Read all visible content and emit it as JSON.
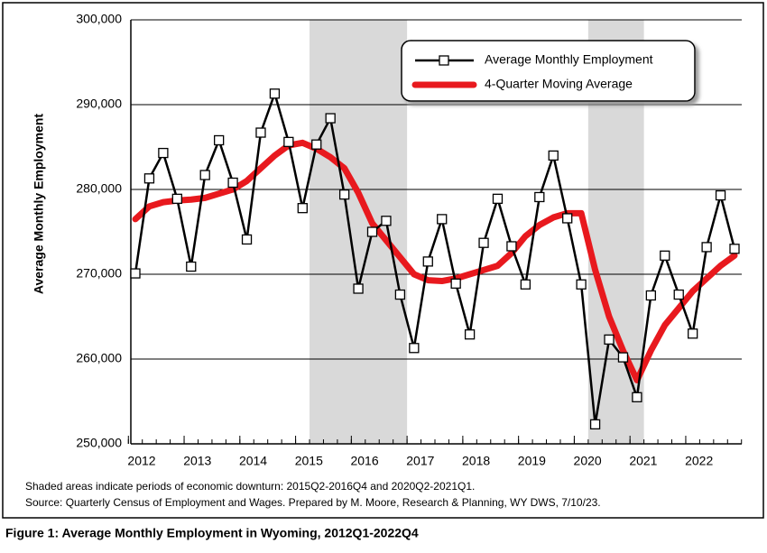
{
  "chart_data": {
    "type": "line",
    "ylabel": "Average Monthly Employment",
    "caption": "Figure 1: Average Monthly Employment in Wyoming, 2012Q1-2022Q4",
    "notes": [
      "Shaded areas indicate periods of economic downturn: 2015Q2-2016Q4 and 2020Q2-2021Q1.",
      "Source: Quarterly Census of Employment and Wages. Prepared by M. Moore, Research & Planning, WY DWS, 7/10/23."
    ],
    "categories": [
      "2012",
      null,
      null,
      null,
      "2013",
      null,
      null,
      null,
      "2014",
      null,
      null,
      null,
      "2015",
      null,
      null,
      null,
      "2016",
      null,
      null,
      null,
      "2017",
      null,
      null,
      null,
      "2018",
      null,
      null,
      null,
      "2019",
      null,
      null,
      null,
      "2020",
      null,
      null,
      null,
      "2021",
      null,
      null,
      null,
      "2022",
      null,
      null,
      null
    ],
    "series": [
      {
        "name": "Average Monthly Employment",
        "color": "#000000",
        "marker": "square",
        "values": [
          270100,
          281300,
          284300,
          278900,
          270900,
          281700,
          285800,
          280800,
          274100,
          286700,
          291300,
          285600,
          277800,
          285300,
          288400,
          279400,
          268300,
          275000,
          276300,
          267600,
          261300,
          271500,
          276500,
          268900,
          262900,
          273700,
          278900,
          273300,
          268800,
          279100,
          284000,
          276600,
          268800,
          252300,
          262300,
          260200,
          255500,
          267500,
          272200,
          267600,
          263000,
          273200,
          279300,
          273000
        ]
      },
      {
        "name": "4-Quarter Moving Average",
        "color": "#e8191e",
        "marker": "none",
        "values": [
          276500,
          278000,
          278500,
          278700,
          278800,
          279000,
          279500,
          280000,
          281000,
          282500,
          284000,
          285200,
          285500,
          284800,
          283800,
          282500,
          279600,
          276000,
          274000,
          272000,
          270000,
          269300,
          269200,
          269500,
          270000,
          270500,
          271000,
          272500,
          274500,
          275800,
          276700,
          277200,
          277200,
          270500,
          265000,
          261000,
          257500,
          261000,
          264000,
          266000,
          268000,
          269500,
          271000,
          272200
        ]
      }
    ],
    "ylim": [
      250000,
      300000
    ],
    "yticks": [
      {
        "value": 250000,
        "label": "250,000"
      },
      {
        "value": 260000,
        "label": "260,000"
      },
      {
        "value": 270000,
        "label": "270,000"
      },
      {
        "value": 280000,
        "label": "280,000"
      },
      {
        "value": 290000,
        "label": "290,000"
      },
      {
        "value": 300000,
        "label": "300,000"
      }
    ],
    "grid": true,
    "legend": "upper right"
  }
}
